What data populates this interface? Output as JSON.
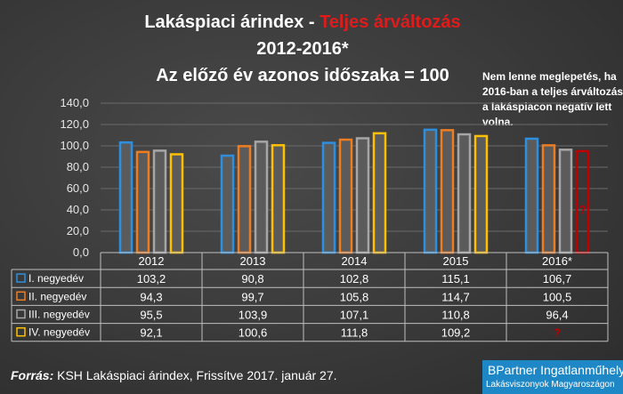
{
  "chart_data": {
    "type": "bar",
    "title": "Lakáspiaci árindex - ",
    "title_highlight": "Teljes árváltozás",
    "subtitle": "2012-2016*",
    "subtitle2": "Az előző év azonos időszaka = 100",
    "categories": [
      "2012",
      "2013",
      "2014",
      "2015",
      "2016*"
    ],
    "series": [
      {
        "name": "I. negyedév",
        "color": "#2e8fde",
        "values": [
          103.2,
          90.8,
          102.8,
          115.1,
          106.7
        ],
        "labels": [
          "103,2",
          "90,8",
          "102,8",
          "115,1",
          "106,7"
        ]
      },
      {
        "name": "II. negyedév",
        "color": "#ee7d22",
        "values": [
          94.3,
          99.7,
          105.8,
          114.7,
          100.5
        ],
        "labels": [
          "94,3",
          "99,7",
          "105,8",
          "114,7",
          "100,5"
        ]
      },
      {
        "name": "III. negyedév",
        "color": "#a6a6a6",
        "values": [
          95.5,
          103.9,
          107.1,
          110.8,
          96.4
        ],
        "labels": [
          "95,5",
          "103,9",
          "107,1",
          "110,8",
          "96,4"
        ]
      },
      {
        "name": "IV. negyedév",
        "color": "#ffc000",
        "values": [
          92.1,
          100.6,
          111.8,
          109.2,
          95
        ],
        "labels": [
          "92,1",
          "100,6",
          "111,8",
          "109,2",
          "?"
        ]
      }
    ],
    "unknown_mark": "?",
    "unknown_color": "#c00000",
    "yticks": [
      "140,0",
      "120,0",
      "100,0",
      "80,0",
      "60,0",
      "40,0",
      "20,0",
      "0,0"
    ],
    "ylim": [
      0,
      140
    ],
    "grid": true,
    "legend": "data-table"
  },
  "note": "Nem lenne meglepetés, ha 2016-ban a teljes árváltozás a lakáspiacon negatív lett volna.",
  "source_prefix": "Forrás:",
  "source_text": " KSH Lakáspiaci árindex, Frissítve 2017. január 27.",
  "brand_name": "BPartner Ingatlanműhely",
  "brand_tagline": "Lakásviszonyok Magyaroszágon"
}
